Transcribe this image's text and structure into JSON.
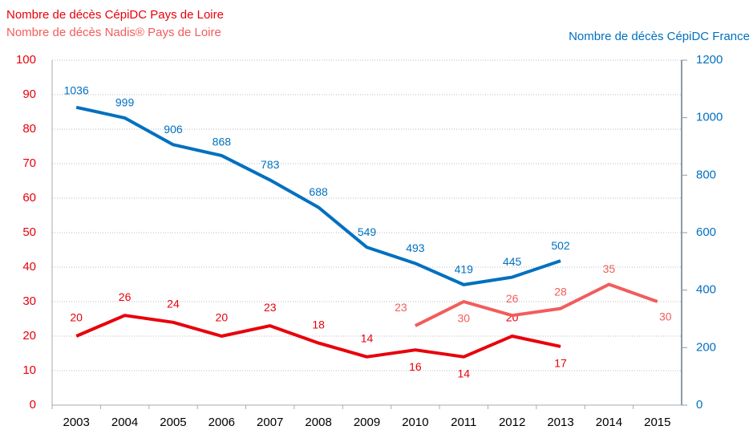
{
  "chart_data": {
    "type": "line",
    "categories": [
      "2003",
      "2004",
      "2005",
      "2006",
      "2007",
      "2008",
      "2009",
      "2010",
      "2011",
      "2012",
      "2013",
      "2014",
      "2015"
    ],
    "series": [
      {
        "name": "Nombre de décès CépiDC Pays de Loire",
        "color": "#e8000b",
        "values": [
          20,
          26,
          24,
          20,
          23,
          18,
          14,
          16,
          14,
          20,
          17,
          null,
          null
        ]
      },
      {
        "name": "Nombre de décès Nadis® Pays de Loire",
        "color": "#f25c5c",
        "values": [
          null,
          null,
          null,
          null,
          null,
          null,
          null,
          23,
          30,
          26,
          28,
          35,
          30
        ]
      },
      {
        "name": "Nombre de décès CépiDC France",
        "color": "#0070c0",
        "axis": "y2",
        "values": [
          1036,
          999,
          906,
          868,
          783,
          688,
          549,
          493,
          419,
          445,
          502,
          null,
          null
        ]
      }
    ],
    "ylim": [
      0,
      100
    ],
    "yticks": [
      0,
      10,
      20,
      30,
      40,
      50,
      60,
      70,
      80,
      90,
      100
    ],
    "y2lim": [
      0,
      1200
    ],
    "y2ticks": [
      0,
      200,
      400,
      600,
      800,
      1000,
      1200
    ],
    "grid": true
  }
}
